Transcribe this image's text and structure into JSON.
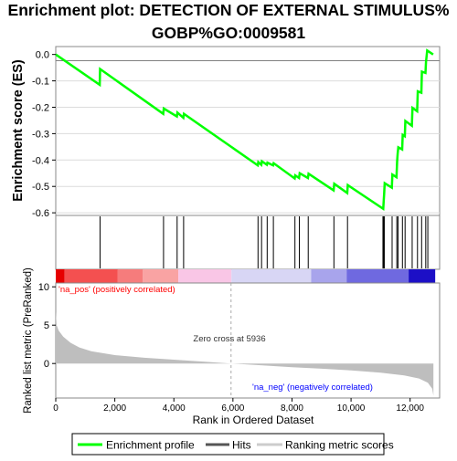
{
  "title_line1": "Enrichment plot: DETECTION OF EXTERNAL STIMULUS%",
  "title_line2": "GOBP%GO:0009581",
  "colors": {
    "es_line": "#00ff00",
    "hits": "#000000",
    "metric_fill": "#bebebe",
    "axis": "#000000",
    "pos_label": "#ff0000",
    "neg_label": "#0000ff",
    "zero_line": "#808080"
  },
  "chart_data": [
    {
      "type": "line",
      "name": "enrichment_profile",
      "ylabel": "Enrichment score (ES)",
      "ylim": [
        -0.61,
        0.03
      ],
      "xlim": [
        0,
        13000
      ],
      "yticks": [
        0.0,
        -0.1,
        -0.2,
        -0.3,
        -0.4,
        -0.5,
        -0.6
      ],
      "ytick_labels": [
        "0.0",
        "-0.1",
        "-0.2",
        "-0.3",
        "-0.4",
        "-0.5",
        "-0.6"
      ],
      "points": [
        [
          0,
          0.0
        ],
        [
          1490,
          -0.115
        ],
        [
          1500,
          -0.055
        ],
        [
          3640,
          -0.225
        ],
        [
          3660,
          -0.205
        ],
        [
          4100,
          -0.235
        ],
        [
          4120,
          -0.22
        ],
        [
          4320,
          -0.24
        ],
        [
          4340,
          -0.225
        ],
        [
          6840,
          -0.42
        ],
        [
          6860,
          -0.408
        ],
        [
          6960,
          -0.418
        ],
        [
          6980,
          -0.405
        ],
        [
          7150,
          -0.418
        ],
        [
          7170,
          -0.41
        ],
        [
          7360,
          -0.42
        ],
        [
          7380,
          -0.412
        ],
        [
          8090,
          -0.47
        ],
        [
          8110,
          -0.458
        ],
        [
          8240,
          -0.468
        ],
        [
          8260,
          -0.45
        ],
        [
          8540,
          -0.468
        ],
        [
          8560,
          -0.452
        ],
        [
          9410,
          -0.515
        ],
        [
          9430,
          -0.49
        ],
        [
          9870,
          -0.525
        ],
        [
          9890,
          -0.495
        ],
        [
          11090,
          -0.585
        ],
        [
          11110,
          -0.55
        ],
        [
          11120,
          -0.528
        ],
        [
          11140,
          -0.488
        ],
        [
          11380,
          -0.505
        ],
        [
          11400,
          -0.455
        ],
        [
          11540,
          -0.465
        ],
        [
          11560,
          -0.405
        ],
        [
          11580,
          -0.375
        ],
        [
          11600,
          -0.352
        ],
        [
          11730,
          -0.36
        ],
        [
          11750,
          -0.305
        ],
        [
          11820,
          -0.31
        ],
        [
          11840,
          -0.252
        ],
        [
          12060,
          -0.27
        ],
        [
          12080,
          -0.202
        ],
        [
          12240,
          -0.215
        ],
        [
          12260,
          -0.14
        ],
        [
          12380,
          -0.145
        ],
        [
          12400,
          -0.065
        ],
        [
          12520,
          -0.07
        ],
        [
          12540,
          -0.028
        ],
        [
          12580,
          0.015
        ],
        [
          12780,
          0.0
        ]
      ]
    },
    {
      "type": "hits",
      "name": "hits",
      "positions": [
        1500,
        3650,
        4110,
        4330,
        6850,
        6970,
        7160,
        7370,
        8100,
        8250,
        8550,
        9420,
        9880,
        11080,
        11100,
        11130,
        11390,
        11550,
        11590,
        11740,
        11830,
        12070,
        12250,
        12390,
        12530,
        12600
      ]
    },
    {
      "type": "area",
      "name": "ranked_list_metric",
      "xlabel": "Rank in Ordered Dataset",
      "ylabel": "Ranked list metric (PreRanked)",
      "xlim": [
        0,
        13000
      ],
      "ylim": [
        -4.5,
        10.5
      ],
      "yticks": [
        10,
        5,
        0
      ],
      "ytick_labels": [
        "10",
        "5",
        "0"
      ],
      "xticks": [
        0,
        2000,
        4000,
        6000,
        8000,
        10000,
        12000
      ],
      "xtick_labels": [
        "0",
        "2,000",
        "4,000",
        "6,000",
        "8,000",
        "10,000",
        "12,000"
      ],
      "points": [
        [
          0,
          6.8
        ],
        [
          30,
          5.0
        ],
        [
          100,
          4.3
        ],
        [
          250,
          3.5
        ],
        [
          500,
          2.7
        ],
        [
          800,
          2.1
        ],
        [
          1200,
          1.6
        ],
        [
          2000,
          1.1
        ],
        [
          3000,
          0.75
        ],
        [
          4000,
          0.5
        ],
        [
          5000,
          0.25
        ],
        [
          5936,
          0.0
        ],
        [
          7000,
          -0.25
        ],
        [
          8000,
          -0.48
        ],
        [
          9000,
          -0.68
        ],
        [
          10000,
          -0.9
        ],
        [
          11000,
          -1.2
        ],
        [
          11800,
          -1.55
        ],
        [
          12300,
          -1.95
        ],
        [
          12600,
          -2.5
        ],
        [
          12750,
          -3.3
        ],
        [
          12790,
          -4.2
        ]
      ],
      "zero_cross_label": "Zero cross at 5936",
      "zero_cross_rank": 5936,
      "pos_label": "'na_pos' (positively correlated)",
      "neg_label": "'na_neg' (negatively correlated)"
    }
  ],
  "colorbar": [
    {
      "from": 0,
      "to": 300,
      "color": "#e60000"
    },
    {
      "from": 300,
      "to": 2100,
      "color": "#f45050"
    },
    {
      "from": 2100,
      "to": 2950,
      "color": "#f67c7c"
    },
    {
      "from": 2950,
      "to": 4150,
      "color": "#f9a3a3"
    },
    {
      "from": 4150,
      "to": 5950,
      "color": "#f9c6e6"
    },
    {
      "from": 5950,
      "to": 8650,
      "color": "#d8d6f5"
    },
    {
      "from": 8650,
      "to": 9850,
      "color": "#a8a4ec"
    },
    {
      "from": 9850,
      "to": 11950,
      "color": "#6f69e0"
    },
    {
      "from": 11950,
      "to": 12850,
      "color": "#1c0fc6"
    }
  ],
  "legend": {
    "items": [
      {
        "label": "Enrichment profile",
        "color": "#00ff00",
        "kind": "line"
      },
      {
        "label": "Hits",
        "color": "#555555",
        "kind": "line"
      },
      {
        "label": "Ranking metric scores",
        "color": "#cccccc",
        "kind": "line"
      }
    ]
  }
}
